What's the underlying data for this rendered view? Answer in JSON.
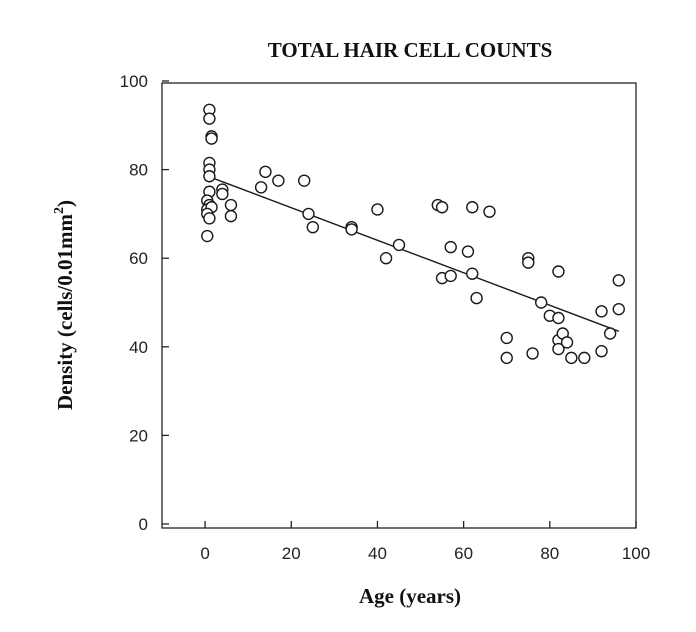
{
  "chart_data": {
    "type": "scatter",
    "title": "TOTAL HAIR CELL COUNTS",
    "xlabel": "Age (years)",
    "ylabel_main": "Density (cells/0.01mm",
    "ylabel_sup": "2",
    "ylabel_close": ")",
    "xlim": [
      -10,
      100
    ],
    "ylim": [
      0,
      100
    ],
    "x_ticks": [
      0,
      20,
      40,
      60,
      80,
      100
    ],
    "x_tick_labels": [
      "0",
      "20",
      "40",
      "60",
      "80",
      "100"
    ],
    "y_ticks": [
      0,
      20,
      40,
      60,
      80,
      100
    ],
    "y_tick_labels": [
      "0",
      "20",
      "40",
      "60",
      "80",
      "100"
    ],
    "grid": false,
    "marker": "open-circle",
    "points": [
      {
        "x": 1,
        "y": 93.5
      },
      {
        "x": 1,
        "y": 91.5
      },
      {
        "x": 1.5,
        "y": 87.5
      },
      {
        "x": 1.5,
        "y": 87
      },
      {
        "x": 1,
        "y": 81.5
      },
      {
        "x": 1,
        "y": 80
      },
      {
        "x": 1,
        "y": 78.5
      },
      {
        "x": 1,
        "y": 75
      },
      {
        "x": 0.5,
        "y": 73
      },
      {
        "x": 1,
        "y": 72
      },
      {
        "x": 0.5,
        "y": 71
      },
      {
        "x": 1.5,
        "y": 71.5
      },
      {
        "x": 0.5,
        "y": 70
      },
      {
        "x": 1,
        "y": 69
      },
      {
        "x": 0.5,
        "y": 65
      },
      {
        "x": 4,
        "y": 75.5
      },
      {
        "x": 4,
        "y": 74.5
      },
      {
        "x": 6,
        "y": 72
      },
      {
        "x": 6,
        "y": 69.5
      },
      {
        "x": 13,
        "y": 76
      },
      {
        "x": 14,
        "y": 79.5
      },
      {
        "x": 17,
        "y": 77.5
      },
      {
        "x": 23,
        "y": 77.5
      },
      {
        "x": 24,
        "y": 70
      },
      {
        "x": 25,
        "y": 67
      },
      {
        "x": 34,
        "y": 67
      },
      {
        "x": 34,
        "y": 66.5
      },
      {
        "x": 40,
        "y": 71
      },
      {
        "x": 42,
        "y": 60
      },
      {
        "x": 45,
        "y": 63
      },
      {
        "x": 54,
        "y": 72
      },
      {
        "x": 55,
        "y": 71.5
      },
      {
        "x": 55,
        "y": 55.5
      },
      {
        "x": 57,
        "y": 62.5
      },
      {
        "x": 57,
        "y": 56
      },
      {
        "x": 61,
        "y": 61.5
      },
      {
        "x": 62,
        "y": 71.5
      },
      {
        "x": 62,
        "y": 56.5
      },
      {
        "x": 63,
        "y": 51
      },
      {
        "x": 66,
        "y": 70.5
      },
      {
        "x": 70,
        "y": 42
      },
      {
        "x": 70,
        "y": 37.5
      },
      {
        "x": 75,
        "y": 60
      },
      {
        "x": 75,
        "y": 59
      },
      {
        "x": 76,
        "y": 38.5
      },
      {
        "x": 78,
        "y": 50
      },
      {
        "x": 80,
        "y": 47
      },
      {
        "x": 82,
        "y": 57
      },
      {
        "x": 82,
        "y": 46.5
      },
      {
        "x": 82,
        "y": 41.5
      },
      {
        "x": 82,
        "y": 39.5
      },
      {
        "x": 83,
        "y": 43
      },
      {
        "x": 84,
        "y": 41
      },
      {
        "x": 85,
        "y": 37.5
      },
      {
        "x": 88,
        "y": 37.5
      },
      {
        "x": 92,
        "y": 39
      },
      {
        "x": 92,
        "y": 48
      },
      {
        "x": 94,
        "y": 43
      },
      {
        "x": 96,
        "y": 55
      },
      {
        "x": 96,
        "y": 48.5
      }
    ],
    "trendline": {
      "x": [
        2,
        96
      ],
      "y": [
        78,
        43.5
      ]
    }
  }
}
